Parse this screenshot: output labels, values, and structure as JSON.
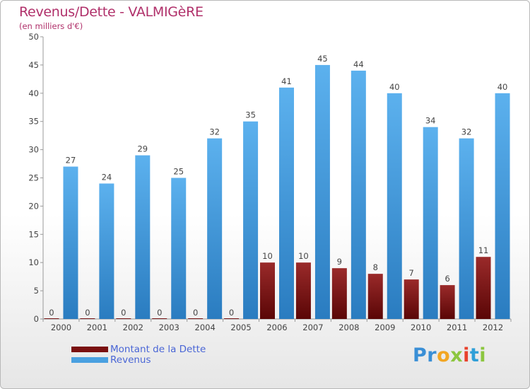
{
  "header": {
    "title": "Revenus/Dette - VALMIGèRE",
    "subtitle": "(en milliers d'€)"
  },
  "legend": {
    "items": [
      {
        "label": "Montant de la Dette",
        "color": "#7a1010"
      },
      {
        "label": "Revenus",
        "color": "#4aa0e0"
      }
    ]
  },
  "logo": {
    "letters": [
      {
        "ch": "P",
        "color": "#3a8fd6"
      },
      {
        "ch": "r",
        "color": "#3a8fd6"
      },
      {
        "ch": "o",
        "color": "#f2a623"
      },
      {
        "ch": "x",
        "color": "#8cc63f"
      },
      {
        "ch": "i",
        "color": "#e8412c"
      },
      {
        "ch": "t",
        "color": "#2f9fd8"
      },
      {
        "ch": "i",
        "color": "#8cc63f"
      }
    ]
  },
  "chart_data": {
    "type": "bar",
    "categories": [
      "2000",
      "2001",
      "2002",
      "2003",
      "2004",
      "2005",
      "2006",
      "2007",
      "2008",
      "2009",
      "2010",
      "2011",
      "2012"
    ],
    "series": [
      {
        "name": "Montant de la Dette",
        "color": "#7a1010",
        "values": [
          0,
          0,
          0,
          0,
          0,
          0,
          10,
          10,
          9,
          8,
          7,
          6,
          11
        ]
      },
      {
        "name": "Revenus",
        "color": "#4aa0e0",
        "values": [
          27,
          24,
          29,
          25,
          32,
          35,
          41,
          45,
          44,
          40,
          34,
          32,
          40
        ]
      }
    ],
    "ylim": [
      0,
      50
    ],
    "yticks": [
      0,
      5,
      10,
      15,
      20,
      25,
      30,
      35,
      40,
      45,
      50
    ],
    "grid": false,
    "legend_position": "bottom-left"
  }
}
